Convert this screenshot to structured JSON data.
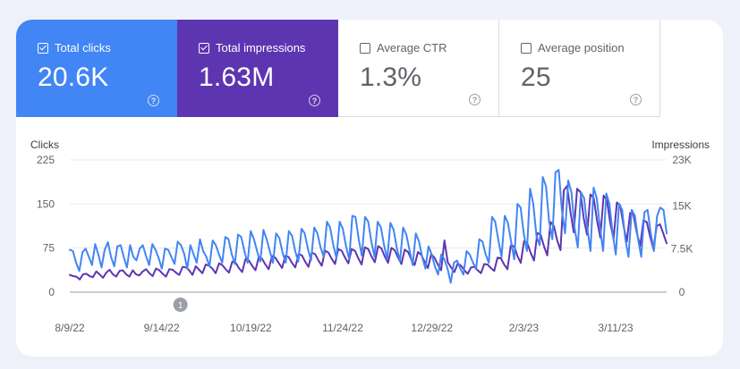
{
  "metrics": [
    {
      "label": "Total clicks",
      "value": "20.6K",
      "checked": true
    },
    {
      "label": "Total impressions",
      "value": "1.63M",
      "checked": true
    },
    {
      "label": "Average CTR",
      "value": "1.3%",
      "checked": false
    },
    {
      "label": "Average position",
      "value": "25",
      "checked": false
    }
  ],
  "help_glyph": "?",
  "colors": {
    "clicks": "#4285f4",
    "impressions": "#5e35b1",
    "background": "#eef1fa"
  },
  "chart_data": {
    "type": "line",
    "ylabel_left": "Clicks",
    "ylabel_right": "Impressions",
    "left_ticks": [
      "0",
      "75",
      "150",
      "225"
    ],
    "right_ticks": [
      "0",
      "7.5K",
      "15K",
      "23K"
    ],
    "left_range": [
      0,
      225
    ],
    "right_range": [
      0,
      23000
    ],
    "x_tick_labels": [
      "8/9/22",
      "9/14/22",
      "10/19/22",
      "11/24/22",
      "12/29/22",
      "2/3/23",
      "3/11/23"
    ],
    "annotation": {
      "label": "1",
      "date": "9/14/22"
    },
    "x_start": "8/9/22",
    "x_end": "3/31/23",
    "grid": true,
    "series": [
      {
        "name": "Clicks",
        "axis": "left",
        "color": "#4285f4",
        "values": [
          72,
          70,
          50,
          36,
          68,
          74,
          60,
          46,
          82,
          64,
          42,
          72,
          85,
          60,
          44,
          78,
          80,
          60,
          42,
          80,
          60,
          54,
          74,
          80,
          62,
          46,
          82,
          72,
          58,
          40,
          74,
          72,
          60,
          48,
          86,
          80,
          66,
          40,
          80,
          64,
          50,
          90,
          70,
          60,
          44,
          88,
          80,
          64,
          50,
          94,
          90,
          65,
          48,
          98,
          94,
          70,
          50,
          104,
          90,
          70,
          52,
          106,
          90,
          70,
          50,
          100,
          92,
          68,
          50,
          104,
          96,
          70,
          52,
          108,
          100,
          74,
          54,
          110,
          100,
          76,
          60,
          120,
          110,
          80,
          58,
          120,
          108,
          78,
          56,
          130,
          128,
          90,
          62,
          128,
          120,
          86,
          60,
          120,
          110,
          80,
          56,
          118,
          106,
          76,
          52,
          110,
          98,
          72,
          46,
          100,
          86,
          60,
          40,
          78,
          64,
          44,
          30,
          64,
          56,
          40,
          16,
          50,
          54,
          40,
          30,
          70,
          64,
          50,
          40,
          90,
          86,
          64,
          50,
          128,
          120,
          88,
          60,
          130,
          118,
          86,
          56,
          150,
          144,
          100,
          70,
          176,
          150,
          96,
          80,
          196,
          180,
          120,
          90,
          204,
          208,
          140,
          100,
          190,
          170,
          110,
          76,
          170,
          160,
          110,
          70,
          178,
          160,
          110,
          70,
          168,
          150,
          100,
          64,
          150,
          140,
          90,
          60,
          140,
          130,
          90,
          60,
          136,
          140,
          100,
          70,
          130,
          144,
          140,
          100
        ]
      },
      {
        "name": "Impressions",
        "axis": "right",
        "color": "#5e35b1",
        "values": [
          3000,
          2800,
          2700,
          2200,
          3100,
          3200,
          2800,
          2600,
          3600,
          3100,
          2500,
          3400,
          3900,
          3100,
          2700,
          3700,
          3800,
          3100,
          2700,
          3800,
          3100,
          2900,
          3600,
          4000,
          3300,
          2800,
          4100,
          3800,
          3200,
          2700,
          4000,
          3900,
          3400,
          3000,
          4400,
          4300,
          3800,
          3000,
          4500,
          3900,
          3300,
          4800,
          4600,
          4100,
          3300,
          5000,
          4700,
          4000,
          3400,
          5300,
          5100,
          4200,
          3500,
          5800,
          5500,
          4600,
          3800,
          6100,
          5800,
          4800,
          4000,
          6300,
          6000,
          5100,
          4200,
          6300,
          6100,
          5100,
          4300,
          6600,
          6400,
          5300,
          4400,
          6900,
          6600,
          5500,
          4600,
          7200,
          6900,
          5800,
          4900,
          7500,
          7200,
          6000,
          5000,
          7500,
          7200,
          5900,
          4800,
          7800,
          7500,
          6200,
          5200,
          8000,
          7600,
          6200,
          5100,
          7700,
          7300,
          6000,
          4900,
          7400,
          7000,
          5700,
          4700,
          7000,
          6500,
          5300,
          4200,
          6600,
          6000,
          4800,
          3800,
          9000,
          5200,
          4300,
          3500,
          5000,
          4600,
          3800,
          3200,
          4300,
          4400,
          3800,
          3300,
          4900,
          4800,
          4200,
          3700,
          6000,
          5900,
          4800,
          4000,
          8100,
          8000,
          6300,
          5100,
          8900,
          8500,
          6800,
          5500,
          10300,
          10000,
          8000,
          6400,
          12200,
          11500,
          9000,
          7300,
          17700,
          18500,
          14000,
          10400,
          18000,
          17400,
          12800,
          10000,
          17000,
          16400,
          12500,
          9500,
          16800,
          16000,
          12000,
          9300,
          15600,
          15100,
          11600,
          8800,
          13800,
          13500,
          10400,
          8000,
          12500,
          12200,
          9700,
          7500,
          11500,
          11800,
          10200,
          8500
        ]
      }
    ]
  }
}
